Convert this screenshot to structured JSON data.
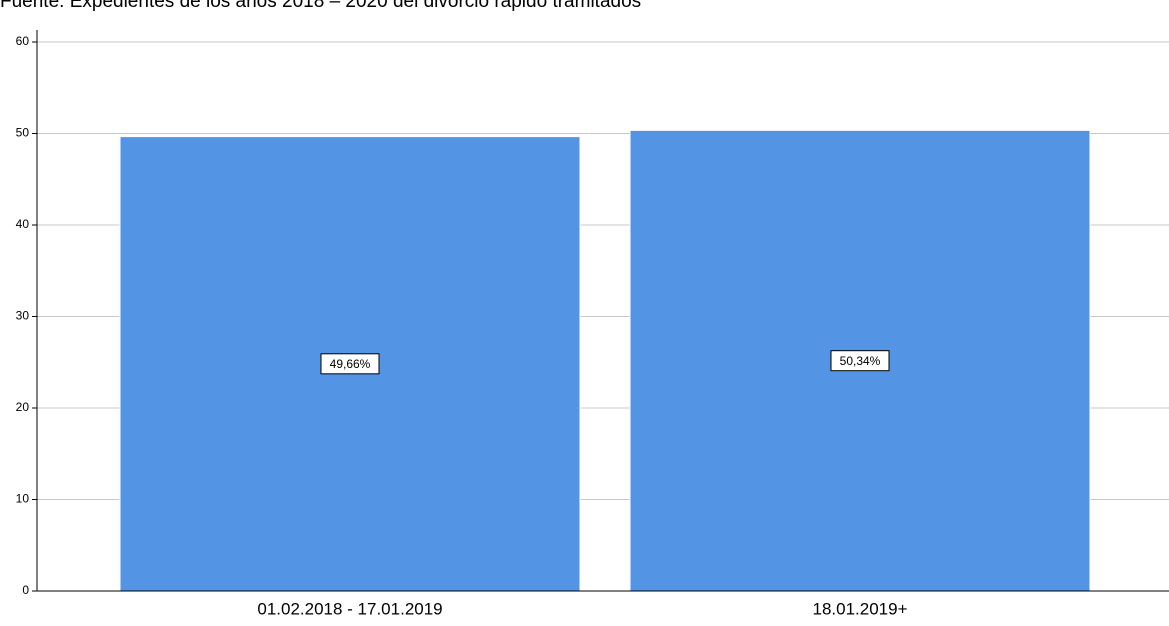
{
  "chart_data": {
    "type": "bar",
    "title": "Fuente: Expedientes de los años 2018 – 2020 del divorcio rápido tramitados",
    "categories": [
      "01.02.2018 - 17.01.2019",
      "18.01.2019+"
    ],
    "values": [
      49.66,
      50.34
    ],
    "value_labels": [
      "49,66%",
      "50,34%"
    ],
    "color": "#5494e5",
    "ylim": [
      0,
      60
    ],
    "yticks": [
      0,
      10,
      20,
      30,
      40,
      50,
      60
    ],
    "grid": true
  }
}
